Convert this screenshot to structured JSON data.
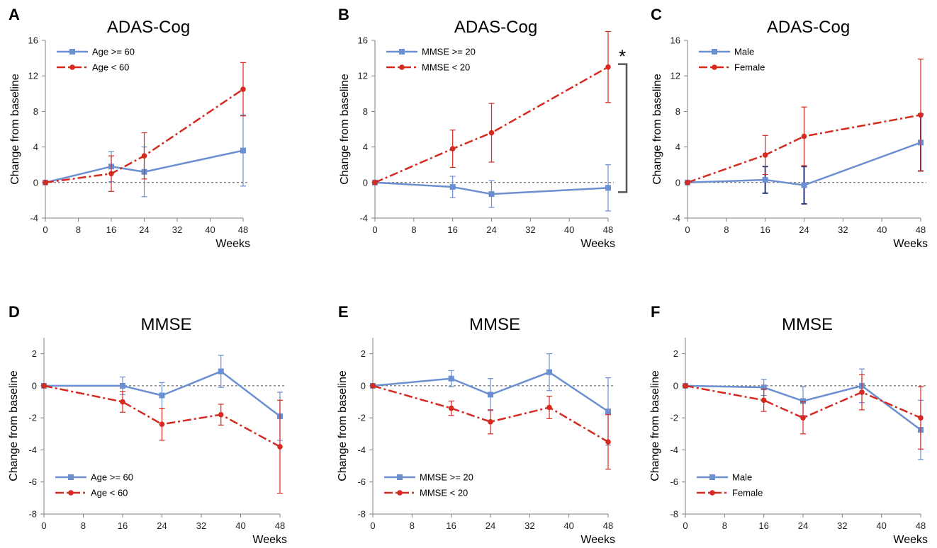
{
  "colors": {
    "blue": "#6b8fd0",
    "red": "#d42a20",
    "navy": "#2a3a7a",
    "axis": "#7f7f7f"
  },
  "chart_data": [
    {
      "panel": "A",
      "type": "line",
      "title": "ADAS-Cog",
      "xlabel": "Weeks",
      "ylabel": "Change from baseline",
      "xlim": [
        0,
        48
      ],
      "xticks": [
        0,
        8,
        16,
        24,
        32,
        40,
        48
      ],
      "ylim": [
        -4,
        16
      ],
      "yticks": [
        -4,
        0,
        4,
        8,
        12,
        16
      ],
      "legend_position": "top-left",
      "series": [
        {
          "name": "Age >= 60",
          "color": "blue",
          "marker": "square",
          "dash": "solid",
          "x": [
            0,
            16,
            24,
            48
          ],
          "y": [
            0,
            1.8,
            1.2,
            3.6
          ],
          "err_low": [
            0,
            1.7,
            2.8,
            4.0
          ],
          "err_high": [
            0,
            1.7,
            2.8,
            4.0
          ]
        },
        {
          "name": "Age < 60",
          "color": "red",
          "marker": "circle",
          "dash": "dashdot",
          "x": [
            0,
            16,
            24,
            48
          ],
          "y": [
            0,
            1.0,
            3.0,
            10.5
          ],
          "err_low": [
            0,
            2.0,
            2.6,
            3.0
          ],
          "err_high": [
            0,
            2.0,
            2.6,
            3.0
          ]
        }
      ]
    },
    {
      "panel": "B",
      "type": "line",
      "title": "ADAS-Cog",
      "xlabel": "Weeks",
      "ylabel": "Change from baseline",
      "xlim": [
        0,
        48
      ],
      "xticks": [
        0,
        8,
        16,
        24,
        32,
        40,
        48
      ],
      "ylim": [
        -4,
        16
      ],
      "yticks": [
        -4,
        0,
        4,
        8,
        12,
        16
      ],
      "legend_position": "top-left",
      "annotation": "*",
      "series": [
        {
          "name": "MMSE >= 20",
          "color": "blue",
          "marker": "square",
          "dash": "solid",
          "x": [
            0,
            16,
            24,
            48
          ],
          "y": [
            0,
            -0.5,
            -1.3,
            -0.6
          ],
          "err_low": [
            0,
            1.2,
            1.5,
            2.6
          ],
          "err_high": [
            0,
            1.2,
            1.5,
            2.6
          ]
        },
        {
          "name": "MMSE < 20",
          "color": "red",
          "marker": "circle",
          "dash": "dashdot",
          "x": [
            0,
            16,
            24,
            48
          ],
          "y": [
            0,
            3.8,
            5.6,
            13.0
          ],
          "err_low": [
            0,
            2.1,
            3.3,
            4.0
          ],
          "err_high": [
            0,
            2.1,
            3.3,
            4.0
          ]
        }
      ]
    },
    {
      "panel": "C",
      "type": "line",
      "title": "ADAS-Cog",
      "xlabel": "Weeks",
      "ylabel": "Change from baseline",
      "xlim": [
        0,
        48
      ],
      "xticks": [
        0,
        8,
        16,
        24,
        32,
        40,
        48
      ],
      "ylim": [
        -4,
        16
      ],
      "yticks": [
        -4,
        0,
        4,
        8,
        12,
        16
      ],
      "legend_position": "top-left",
      "series": [
        {
          "name": "Male",
          "color": "blue",
          "errcolor": "navy",
          "marker": "square",
          "dash": "solid",
          "x": [
            0,
            16,
            24,
            48
          ],
          "y": [
            0,
            0.3,
            -0.3,
            4.5
          ],
          "err_low": [
            0,
            1.5,
            2.1,
            3.2
          ],
          "err_high": [
            0,
            1.5,
            2.1,
            3.2
          ]
        },
        {
          "name": "Female",
          "color": "red",
          "marker": "circle",
          "dash": "dashdot",
          "x": [
            0,
            16,
            24,
            48
          ],
          "y": [
            0,
            3.1,
            5.2,
            7.6
          ],
          "err_low": [
            0,
            2.2,
            3.3,
            6.3
          ],
          "err_high": [
            0,
            2.2,
            3.3,
            6.3
          ]
        }
      ]
    },
    {
      "panel": "D",
      "type": "line",
      "title": "MMSE",
      "xlabel": "Weeks",
      "ylabel": "Change from baseline",
      "xlim": [
        0,
        48
      ],
      "xticks": [
        0,
        8,
        16,
        24,
        32,
        40,
        48
      ],
      "ylim": [
        -8,
        3
      ],
      "yticks": [
        -8,
        -6,
        -4,
        -2,
        0,
        2
      ],
      "legend_position": "bottom-left",
      "series": [
        {
          "name": "Age >= 60",
          "color": "blue",
          "marker": "square",
          "dash": "solid",
          "x": [
            0,
            16,
            24,
            36,
            48
          ],
          "y": [
            0,
            0,
            -0.6,
            0.9,
            -1.9
          ],
          "err_low": [
            0,
            0.55,
            0.8,
            1.0,
            1.5
          ],
          "err_high": [
            0,
            0.55,
            0.8,
            1.0,
            1.5
          ]
        },
        {
          "name": "Age < 60",
          "color": "red",
          "marker": "circle",
          "dash": "dashdot",
          "x": [
            0,
            16,
            24,
            36,
            48
          ],
          "y": [
            0,
            -1.0,
            -2.4,
            -1.8,
            -3.8
          ],
          "err_low": [
            0,
            0.65,
            1.0,
            0.65,
            2.9
          ],
          "err_high": [
            0,
            0.65,
            1.0,
            0.65,
            2.9
          ]
        }
      ]
    },
    {
      "panel": "E",
      "type": "line",
      "title": "MMSE",
      "xlabel": "Weeks",
      "ylabel": "Change from baseline",
      "xlim": [
        0,
        48
      ],
      "xticks": [
        0,
        8,
        16,
        24,
        32,
        40,
        48
      ],
      "ylim": [
        -8,
        3
      ],
      "yticks": [
        -8,
        -6,
        -4,
        -2,
        0,
        2
      ],
      "legend_position": "bottom-left",
      "series": [
        {
          "name": "MMSE >= 20",
          "color": "blue",
          "marker": "square",
          "dash": "solid",
          "x": [
            0,
            16,
            24,
            36,
            48
          ],
          "y": [
            0,
            0.45,
            -0.55,
            0.85,
            -1.6
          ],
          "err_low": [
            0,
            0.5,
            1.0,
            1.15,
            2.1
          ],
          "err_high": [
            0,
            0.5,
            1.0,
            1.15,
            2.1
          ]
        },
        {
          "name": "MMSE < 20",
          "color": "red",
          "marker": "circle",
          "dash": "dashdot",
          "x": [
            0,
            16,
            24,
            36,
            48
          ],
          "y": [
            0,
            -1.4,
            -2.25,
            -1.35,
            -3.5
          ],
          "err_low": [
            0,
            0.45,
            0.75,
            0.7,
            1.7
          ],
          "err_high": [
            0,
            0.45,
            0.75,
            0.7,
            1.7
          ]
        }
      ]
    },
    {
      "panel": "F",
      "type": "line",
      "title": "MMSE",
      "xlabel": "Weeks",
      "ylabel": "Change from baseline",
      "xlim": [
        0,
        48
      ],
      "xticks": [
        0,
        8,
        16,
        24,
        32,
        40,
        48
      ],
      "ylim": [
        -8,
        3
      ],
      "yticks": [
        -8,
        -6,
        -4,
        -2,
        0,
        2
      ],
      "legend_position": "bottom-left",
      "series": [
        {
          "name": "Male",
          "color": "blue",
          "marker": "square",
          "dash": "solid",
          "x": [
            0,
            16,
            24,
            36,
            48
          ],
          "y": [
            0,
            -0.1,
            -0.95,
            0,
            -2.75
          ],
          "err_low": [
            0,
            0.5,
            0.9,
            1.05,
            1.85
          ],
          "err_high": [
            0,
            0.5,
            0.9,
            1.05,
            1.85
          ]
        },
        {
          "name": "Female",
          "color": "red",
          "marker": "circle",
          "dash": "dashdot",
          "x": [
            0,
            16,
            24,
            36,
            48
          ],
          "y": [
            0,
            -0.9,
            -2.0,
            -0.4,
            -2.0
          ],
          "err_low": [
            0,
            0.7,
            1.0,
            1.1,
            1.95
          ],
          "err_high": [
            0,
            0.7,
            1.0,
            1.1,
            1.95
          ]
        }
      ]
    }
  ]
}
